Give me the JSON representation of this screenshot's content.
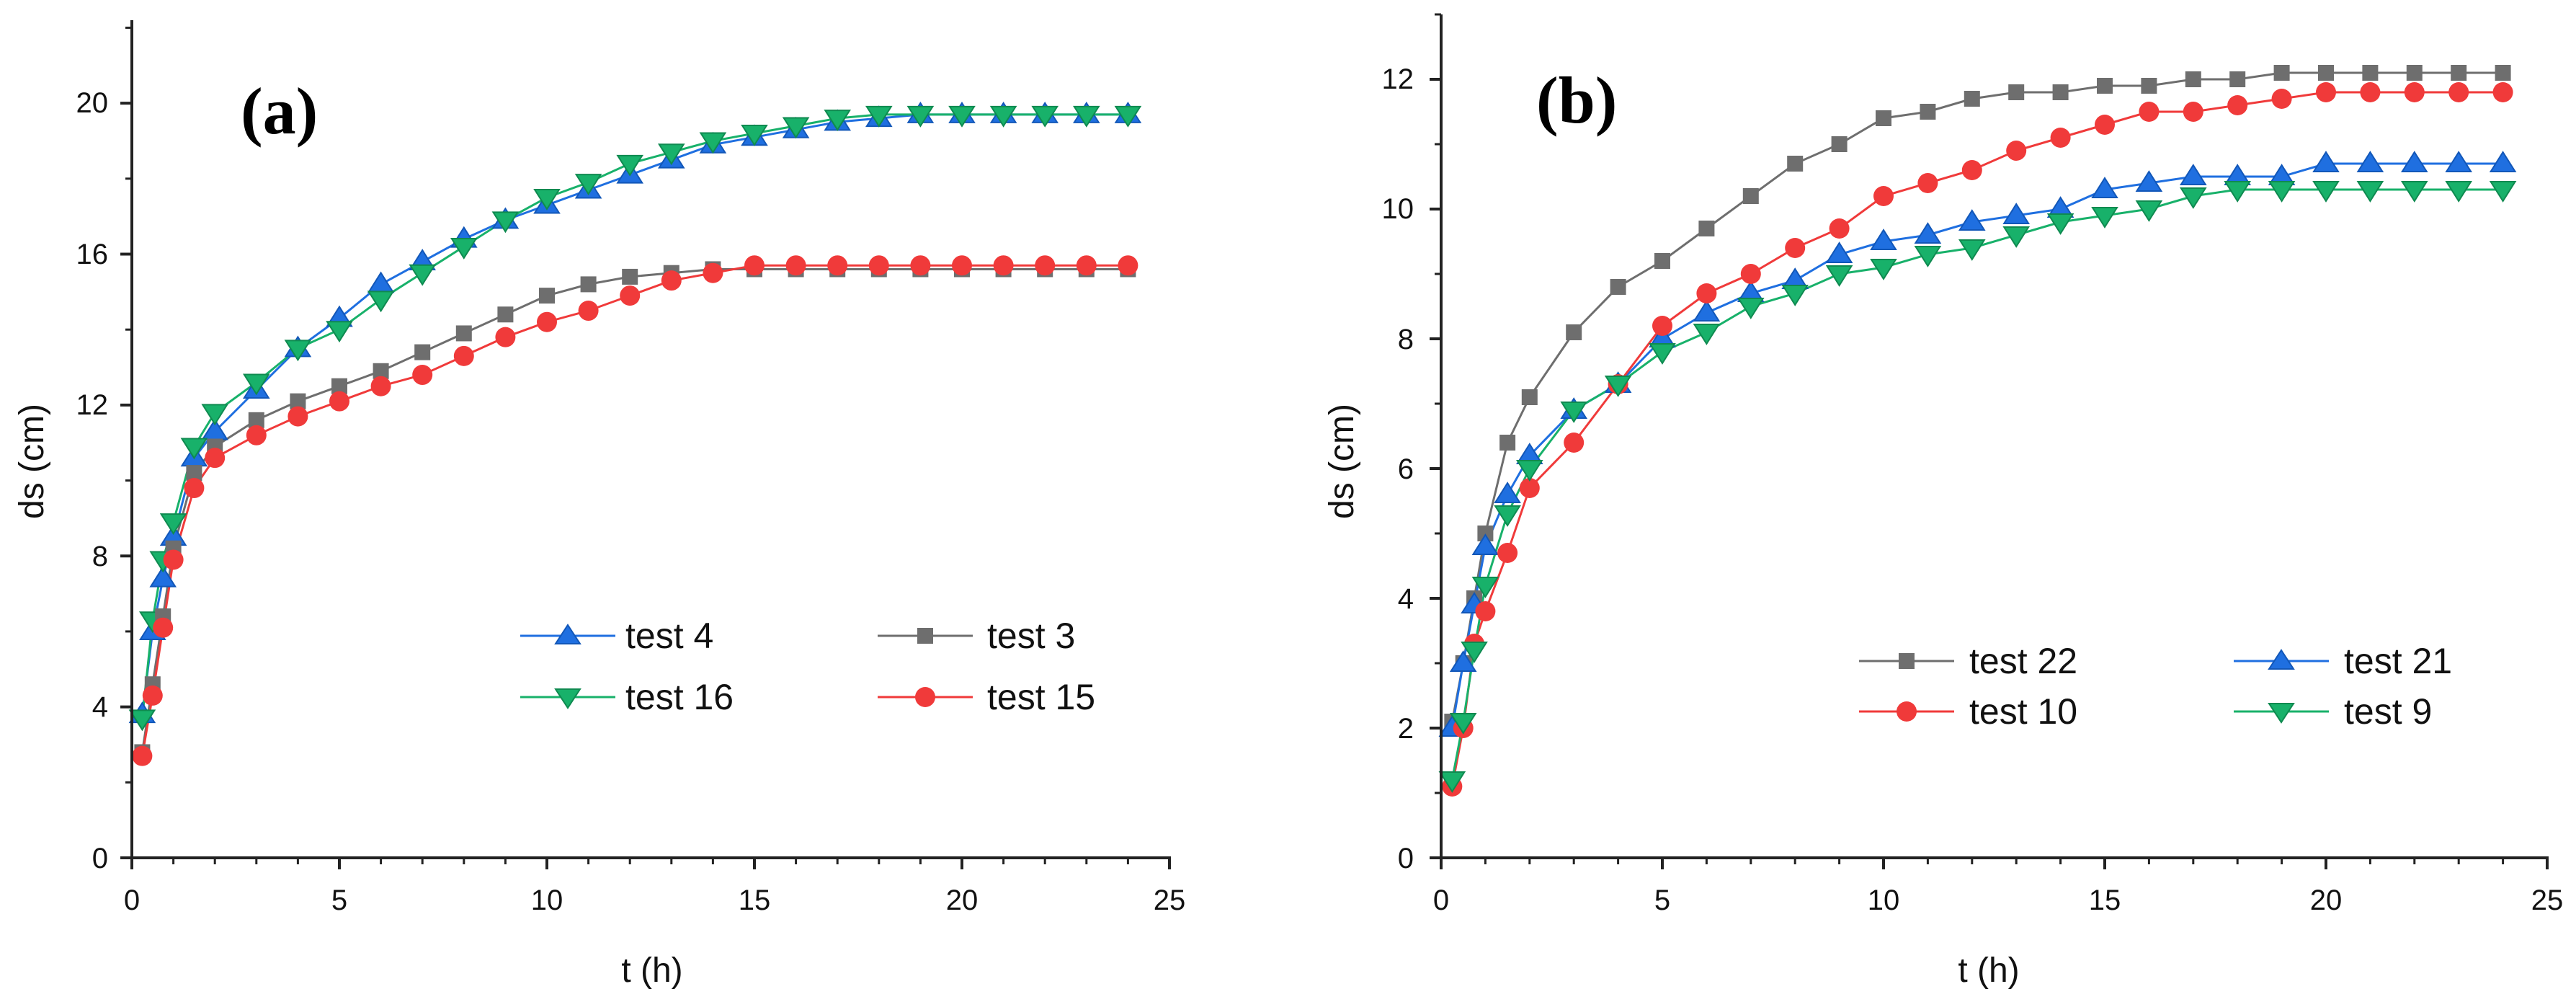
{
  "chart_data": [
    {
      "type": "line",
      "panel_label": "(a)",
      "xlabel": "t (h)",
      "ylabel": "ds (cm)",
      "xlim": [
        0,
        25
      ],
      "ylim": [
        0,
        22.2
      ],
      "xticks": [
        0,
        5,
        10,
        15,
        20,
        25
      ],
      "yticks": [
        0,
        4,
        8,
        12,
        16,
        20
      ],
      "xtick_labels": [
        "0",
        "5",
        "10",
        "15",
        "20",
        "25"
      ],
      "ytick_labels": [
        "0",
        "4",
        "8",
        "12",
        "16",
        "20"
      ],
      "legend_position": "lower-right",
      "legend_layout": [
        [
          "test 4",
          "test 3"
        ],
        [
          "test 16",
          "test 15"
        ]
      ],
      "series": [
        {
          "name": "test 4",
          "color": "#1f6fe0",
          "marker": "triangle-up",
          "x": [
            0.25,
            0.5,
            0.75,
            1,
            1.5,
            2,
            3,
            4,
            5,
            6,
            7,
            8,
            9,
            10,
            11,
            12,
            13,
            14,
            15,
            16,
            17,
            18,
            19,
            20,
            21,
            22,
            23,
            24
          ],
          "y": [
            3.8,
            6.0,
            7.4,
            8.5,
            10.6,
            11.3,
            12.4,
            13.5,
            14.3,
            15.2,
            15.8,
            16.4,
            16.9,
            17.3,
            17.7,
            18.1,
            18.5,
            18.9,
            19.1,
            19.3,
            19.5,
            19.6,
            19.7,
            19.7,
            19.7,
            19.7,
            19.7,
            19.7
          ]
        },
        {
          "name": "test 16",
          "color": "#18b16a",
          "marker": "triangle-down",
          "x": [
            0.25,
            0.5,
            0.75,
            1,
            1.5,
            2,
            3,
            4,
            5,
            6,
            7,
            8,
            9,
            10,
            11,
            12,
            13,
            14,
            15,
            16,
            17,
            18,
            19,
            20,
            21,
            22,
            23,
            24
          ],
          "y": [
            3.7,
            6.3,
            7.9,
            8.9,
            10.9,
            11.8,
            12.6,
            13.5,
            14.0,
            14.8,
            15.5,
            16.2,
            16.9,
            17.5,
            17.9,
            18.4,
            18.7,
            19.0,
            19.2,
            19.4,
            19.6,
            19.7,
            19.7,
            19.7,
            19.7,
            19.7,
            19.7,
            19.7
          ]
        },
        {
          "name": "test 3",
          "color": "#6e6e6e",
          "marker": "square",
          "x": [
            0.25,
            0.5,
            0.75,
            1,
            1.5,
            2,
            3,
            4,
            5,
            6,
            7,
            8,
            9,
            10,
            11,
            12,
            13,
            14,
            15,
            16,
            17,
            18,
            19,
            20,
            21,
            22,
            23,
            24
          ],
          "y": [
            2.8,
            4.6,
            6.4,
            8.2,
            10.2,
            10.9,
            11.6,
            12.1,
            12.5,
            12.9,
            13.4,
            13.9,
            14.4,
            14.9,
            15.2,
            15.4,
            15.5,
            15.6,
            15.6,
            15.6,
            15.6,
            15.6,
            15.6,
            15.6,
            15.6,
            15.6,
            15.6,
            15.6
          ]
        },
        {
          "name": "test 15",
          "color": "#f03a3a",
          "marker": "circle",
          "x": [
            0.25,
            0.5,
            0.75,
            1,
            1.5,
            2,
            3,
            4,
            5,
            6,
            7,
            8,
            9,
            10,
            11,
            12,
            13,
            14,
            15,
            16,
            17,
            18,
            19,
            20,
            21,
            22,
            23,
            24
          ],
          "y": [
            2.7,
            4.3,
            6.1,
            7.9,
            9.8,
            10.6,
            11.2,
            11.7,
            12.1,
            12.5,
            12.8,
            13.3,
            13.8,
            14.2,
            14.5,
            14.9,
            15.3,
            15.5,
            15.7,
            15.7,
            15.7,
            15.7,
            15.7,
            15.7,
            15.7,
            15.7,
            15.7,
            15.7
          ]
        }
      ]
    },
    {
      "type": "line",
      "panel_label": "(b)",
      "xlabel": "t (h)",
      "ylabel": "ds (cm)",
      "xlim": [
        0,
        25
      ],
      "ylim": [
        0,
        13
      ],
      "xticks": [
        0,
        5,
        10,
        15,
        20,
        25
      ],
      "yticks": [
        0,
        2,
        4,
        6,
        8,
        10,
        12
      ],
      "xtick_labels": [
        "0",
        "5",
        "10",
        "15",
        "20",
        "25"
      ],
      "ytick_labels": [
        "0",
        "2",
        "4",
        "6",
        "8",
        "10",
        "12"
      ],
      "legend_position": "lower-right",
      "legend_layout": [
        [
          "test 22",
          "test 21"
        ],
        [
          "test 10",
          "test 9"
        ]
      ],
      "series": [
        {
          "name": "test 22",
          "color": "#6e6e6e",
          "marker": "square",
          "x": [
            0.25,
            0.5,
            0.75,
            1,
            1.5,
            2,
            3,
            4,
            5,
            6,
            7,
            8,
            9,
            10,
            11,
            12,
            13,
            14,
            15,
            16,
            17,
            18,
            19,
            20,
            21,
            22,
            23,
            24
          ],
          "y": [
            2.1,
            3.0,
            4.0,
            5.0,
            6.4,
            7.1,
            8.1,
            8.8,
            9.2,
            9.7,
            10.2,
            10.7,
            11.0,
            11.4,
            11.5,
            11.7,
            11.8,
            11.8,
            11.9,
            11.9,
            12.0,
            12.0,
            12.1,
            12.1,
            12.1,
            12.1,
            12.1,
            12.1
          ]
        },
        {
          "name": "test 21",
          "color": "#1f6fe0",
          "marker": "triangle-up",
          "x": [
            0.25,
            0.5,
            0.75,
            1,
            1.5,
            2,
            3,
            4,
            5,
            6,
            7,
            8,
            9,
            10,
            11,
            12,
            13,
            14,
            15,
            16,
            17,
            18,
            19,
            20,
            21,
            22,
            23,
            24
          ],
          "y": [
            2.0,
            3.0,
            3.9,
            4.8,
            5.6,
            6.2,
            6.9,
            7.3,
            8.0,
            8.4,
            8.7,
            8.9,
            9.3,
            9.5,
            9.6,
            9.8,
            9.9,
            10.0,
            10.3,
            10.4,
            10.5,
            10.5,
            10.5,
            10.7,
            10.7,
            10.7,
            10.7,
            10.7
          ]
        },
        {
          "name": "test 10",
          "color": "#f03a3a",
          "marker": "circle",
          "x": [
            0.25,
            0.5,
            0.75,
            1,
            1.5,
            2,
            3,
            4,
            5,
            6,
            7,
            8,
            9,
            10,
            11,
            12,
            13,
            14,
            15,
            16,
            17,
            18,
            19,
            20,
            21,
            22,
            23,
            24
          ],
          "y": [
            1.1,
            2.0,
            3.3,
            3.8,
            4.7,
            5.7,
            6.4,
            7.3,
            8.2,
            8.7,
            9.0,
            9.4,
            9.7,
            10.2,
            10.4,
            10.6,
            10.9,
            11.1,
            11.3,
            11.5,
            11.5,
            11.6,
            11.7,
            11.8,
            11.8,
            11.8,
            11.8,
            11.8
          ]
        },
        {
          "name": "test 9",
          "color": "#18b16a",
          "marker": "triangle-down",
          "x": [
            0.25,
            0.5,
            0.75,
            1,
            1.5,
            2,
            3,
            4,
            5,
            6,
            7,
            8,
            9,
            10,
            11,
            12,
            13,
            14,
            15,
            16,
            17,
            18,
            19,
            20,
            21,
            22,
            23,
            24
          ],
          "y": [
            1.2,
            2.1,
            3.2,
            4.2,
            5.3,
            6.0,
            6.9,
            7.3,
            7.8,
            8.1,
            8.5,
            8.7,
            9.0,
            9.1,
            9.3,
            9.4,
            9.6,
            9.8,
            9.9,
            10.0,
            10.2,
            10.3,
            10.3,
            10.3,
            10.3,
            10.3,
            10.3,
            10.3
          ]
        }
      ]
    }
  ]
}
